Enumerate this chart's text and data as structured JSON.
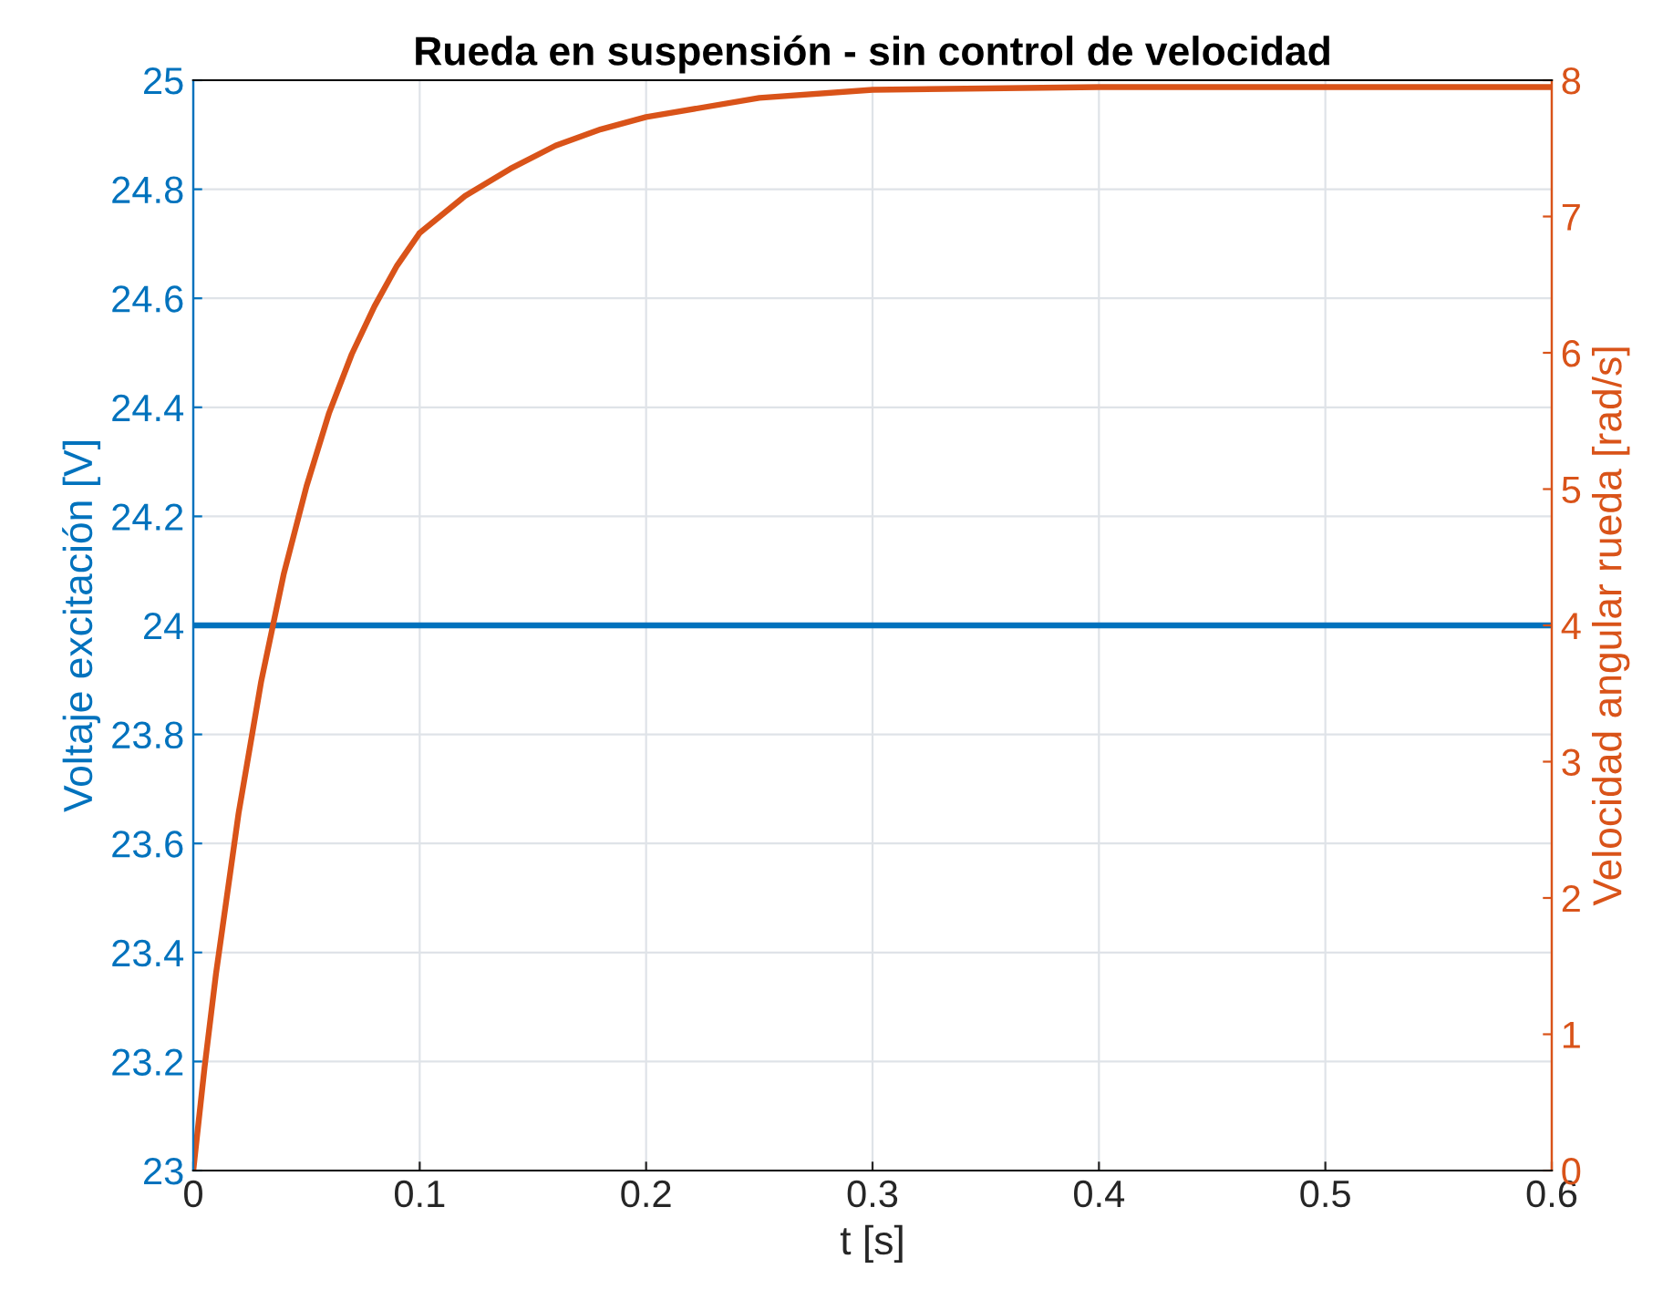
{
  "chart_data": {
    "type": "line",
    "title": "Rueda en suspensión - sin control de velocidad",
    "xlabel": "t [s]",
    "ylabel": "Voltaje excitación [V]",
    "y2label": "Velocidad angular rueda [rad/s]",
    "xlim": [
      0,
      0.6
    ],
    "xticks": [
      0,
      0.1,
      0.2,
      0.3,
      0.4,
      0.5,
      0.6
    ],
    "ylim": [
      23,
      25
    ],
    "yticks": [
      23,
      23.2,
      23.4,
      23.6,
      23.8,
      24,
      24.2,
      24.4,
      24.6,
      24.8,
      25
    ],
    "y2lim": [
      0,
      8
    ],
    "y2ticks": [
      0,
      1,
      2,
      3,
      4,
      5,
      6,
      7,
      8
    ],
    "grid": true,
    "legend": false,
    "series": [
      {
        "color": "#0072bd",
        "x": [
          0,
          0.6
        ],
        "values": [
          24,
          24
        ]
      },
      {
        "color": "#d95319",
        "axis": "y2",
        "x": [
          0,
          0.005,
          0.01,
          0.02,
          0.03,
          0.04,
          0.05,
          0.06,
          0.07,
          0.08,
          0.09,
          0.1,
          0.12,
          0.14,
          0.16,
          0.18,
          0.2,
          0.25,
          0.3,
          0.35,
          0.4,
          0.5,
          0.6
        ],
        "values": [
          0,
          0.76,
          1.44,
          2.62,
          3.59,
          4.38,
          5.02,
          5.56,
          5.99,
          6.34,
          6.64,
          6.88,
          7.15,
          7.35,
          7.52,
          7.64,
          7.73,
          7.87,
          7.93,
          7.94,
          7.95,
          7.95,
          7.95
        ]
      }
    ]
  }
}
